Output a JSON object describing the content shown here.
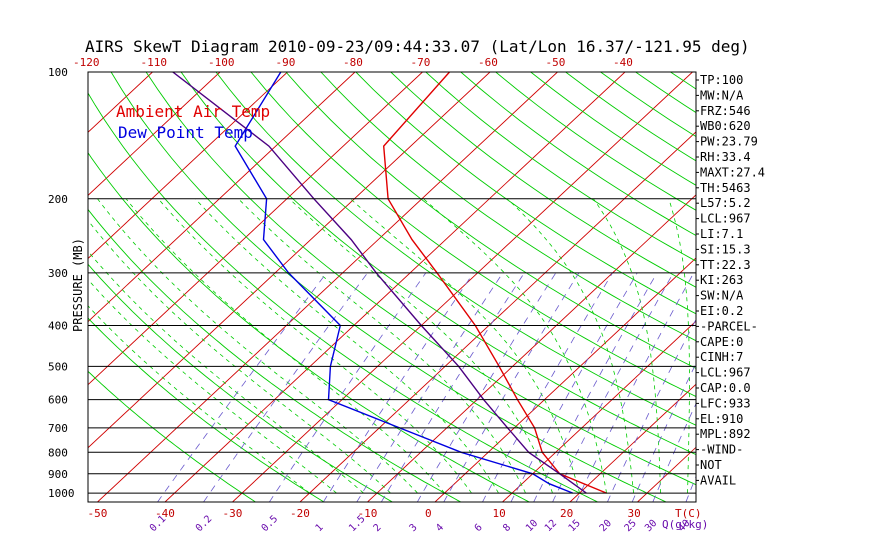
{
  "chart_data": {
    "type": "line",
    "title": "AIRS SkewT Diagram 2010-09-23/09:44:33.07 (Lat/Lon 16.37/-121.95 deg)",
    "ylabel": "PRESSURE (MB)",
    "x_unit_label": "T(C)",
    "mixing_unit_label": "Q(g/kg)",
    "ylim": [
      1050,
      100
    ],
    "xlim_bottom": [
      -55,
      35
    ],
    "yscale": "log",
    "pressure_ticks": [
      100,
      200,
      300,
      400,
      500,
      600,
      700,
      800,
      900,
      1000
    ],
    "pressure_tick_labels": [
      "100",
      "200",
      "300",
      "400",
      "500",
      "600",
      "700",
      "800",
      "900",
      "1000"
    ],
    "temp_ticks_bottom": [
      -50,
      -40,
      -30,
      -20,
      -10,
      0,
      10,
      20,
      30
    ],
    "temp_tick_labels_bottom": [
      "-50",
      "-40",
      "-30",
      "-20",
      "-10",
      "0",
      "10",
      "20",
      "30"
    ],
    "temp_ticks_top": [
      -120,
      -110,
      -100,
      -90,
      -80,
      -70,
      -60,
      -50,
      -40
    ],
    "temp_tick_labels_top": [
      "-120",
      "-110",
      "-100",
      "-90",
      "-80",
      "-70",
      "-60",
      "-50",
      "-40"
    ],
    "mixing_ratio_labels": [
      "0.1",
      "0.2",
      "0.5",
      "1",
      "1.5",
      "2",
      "3",
      "4",
      "6",
      "8",
      "10",
      "12",
      "15",
      "20",
      "25",
      "30",
      "40"
    ],
    "series": [
      {
        "name": "Ambient Air Temp",
        "color": "#e00000",
        "points": [
          [
            100,
            -66
          ],
          [
            150,
            -64
          ],
          [
            200,
            -55
          ],
          [
            250,
            -45
          ],
          [
            300,
            -36
          ],
          [
            400,
            -22
          ],
          [
            500,
            -12
          ],
          [
            600,
            -4
          ],
          [
            700,
            3
          ],
          [
            800,
            8
          ],
          [
            900,
            14
          ],
          [
            1000,
            24
          ]
        ]
      },
      {
        "name": "Dew Point Temp",
        "color": "#0000e0",
        "points": [
          [
            100,
            -91
          ],
          [
            150,
            -86
          ],
          [
            200,
            -73
          ],
          [
            250,
            -67
          ],
          [
            300,
            -58
          ],
          [
            400,
            -42
          ],
          [
            500,
            -37
          ],
          [
            600,
            -32
          ],
          [
            700,
            -17
          ],
          [
            800,
            -4
          ],
          [
            900,
            10
          ],
          [
            950,
            14
          ],
          [
            1000,
            19
          ]
        ]
      },
      {
        "name": "Parcel",
        "color": "#4b0082",
        "points": [
          [
            100,
            -107
          ],
          [
            150,
            -81
          ],
          [
            200,
            -66
          ],
          [
            250,
            -54
          ],
          [
            300,
            -45
          ],
          [
            400,
            -30
          ],
          [
            500,
            -18
          ],
          [
            600,
            -9
          ],
          [
            700,
            -1
          ],
          [
            800,
            6
          ],
          [
            900,
            14
          ],
          [
            1000,
            21
          ]
        ]
      }
    ],
    "legend": [
      "Ambient Air Temp",
      "Dew Point Temp"
    ],
    "legend_position": "top-left",
    "grid": true
  },
  "stats": [
    "TP:100",
    "MW:N/A",
    "FRZ:546",
    "WB0:620",
    "PW:23.79",
    "RH:33.4",
    "MAXT:27.4",
    "TH:5463",
    "L57:5.2",
    "LCL:967",
    "LI:7.1",
    "SI:15.3",
    "TT:22.3",
    "KI:263",
    "SW:N/A",
    "EI:0.2",
    "-PARCEL-",
    "CAPE:0",
    "CINH:7",
    "LCL:967",
    "CAP:0.0",
    "LFC:933",
    "EL:910",
    "MPL:892",
    "-WIND-",
    "NOT",
    "AVAIL"
  ],
  "colors": {
    "isotherm": "#d00000",
    "dry_adiabat": "#00cc00",
    "moist_adiabat": "#00cc00",
    "mixing_ratio": "#6a5acd",
    "isobar": "#000000",
    "title": "#000000",
    "temp_tick": "#c00000",
    "mixing_tick": "#6a0dad"
  }
}
